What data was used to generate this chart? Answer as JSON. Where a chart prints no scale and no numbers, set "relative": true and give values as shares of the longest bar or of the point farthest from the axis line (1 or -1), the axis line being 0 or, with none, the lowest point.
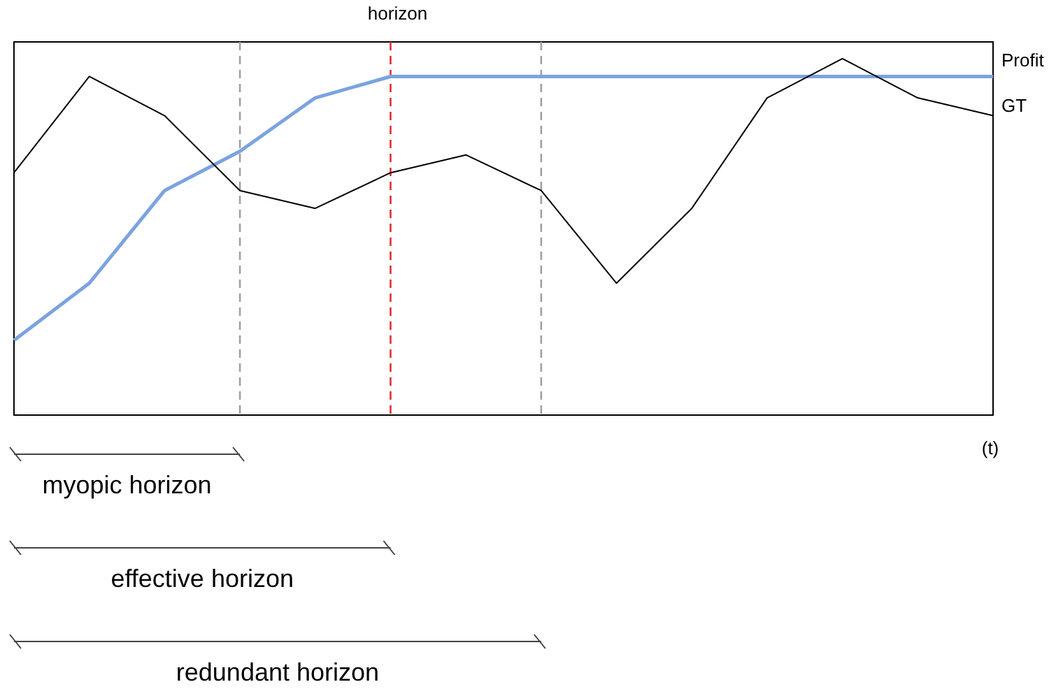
{
  "chart_data": {
    "type": "line",
    "relative": true,
    "xlabel": "(t)",
    "categories": [
      null,
      null,
      null,
      null,
      null,
      null,
      null,
      null,
      null,
      null,
      null,
      null,
      null,
      null
    ],
    "series": [
      {
        "name": "Profit",
        "color": "#7ba3e0",
        "values": [
          0.21,
          0.37,
          0.63,
          0.74,
          0.89,
          0.95,
          0.95,
          0.95,
          0.95,
          0.95,
          0.95,
          0.95,
          0.95,
          0.95
        ]
      },
      {
        "name": "GT",
        "color": "#000000",
        "values": [
          0.68,
          0.95,
          0.84,
          0.63,
          0.58,
          0.68,
          0.73,
          0.63,
          0.37,
          0.58,
          0.89,
          1,
          0.89,
          0.84
        ]
      }
    ],
    "annotations": [
      "horizon",
      "myopic horizon",
      "effective horizon",
      "redundant horizon"
    ],
    "line_style": "solid",
    "marker": "none",
    "grid": false,
    "legend": false
  }
}
